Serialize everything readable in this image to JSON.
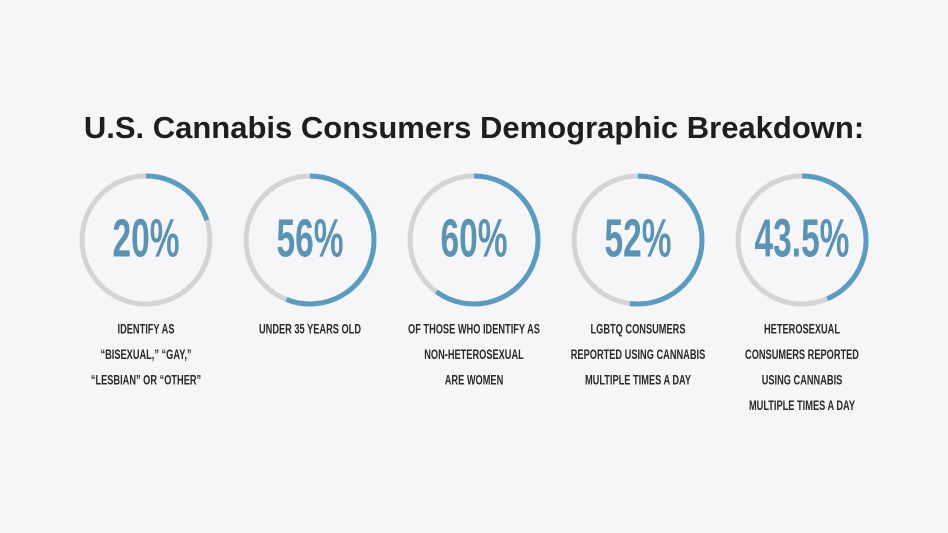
{
  "chart_data": {
    "type": "ring",
    "title": "U.S. Cannabis Consumers Demographic Breakdown:",
    "categories": [
      [
        "IDENTIFY AS",
        "“BISEXUAL,” “GAY,”",
        "“LESBIAN” OR “OTHER”"
      ],
      [
        "UNDER 35 YEARS OLD"
      ],
      [
        "OF THOSE WHO IDENTIFY AS",
        "NON-HETEROSEXUAL",
        "ARE WOMEN"
      ],
      [
        "LGBTQ CONSUMERS",
        "REPORTED USING CANNABIS",
        "MULTIPLE TIMES A DAY"
      ],
      [
        "HETEROSEXUAL",
        "CONSUMERS REPORTED",
        "USING CANNABIS",
        "MULTIPLE TIMES A DAY"
      ]
    ],
    "values": [
      20,
      56,
      60,
      52,
      43.5
    ],
    "value_labels": [
      "20%",
      "56%",
      "60%",
      "52%",
      "43.5%"
    ],
    "ylim": [
      0,
      100
    ],
    "color": "#5b9bbf",
    "track_color": "#d4d4d6"
  }
}
